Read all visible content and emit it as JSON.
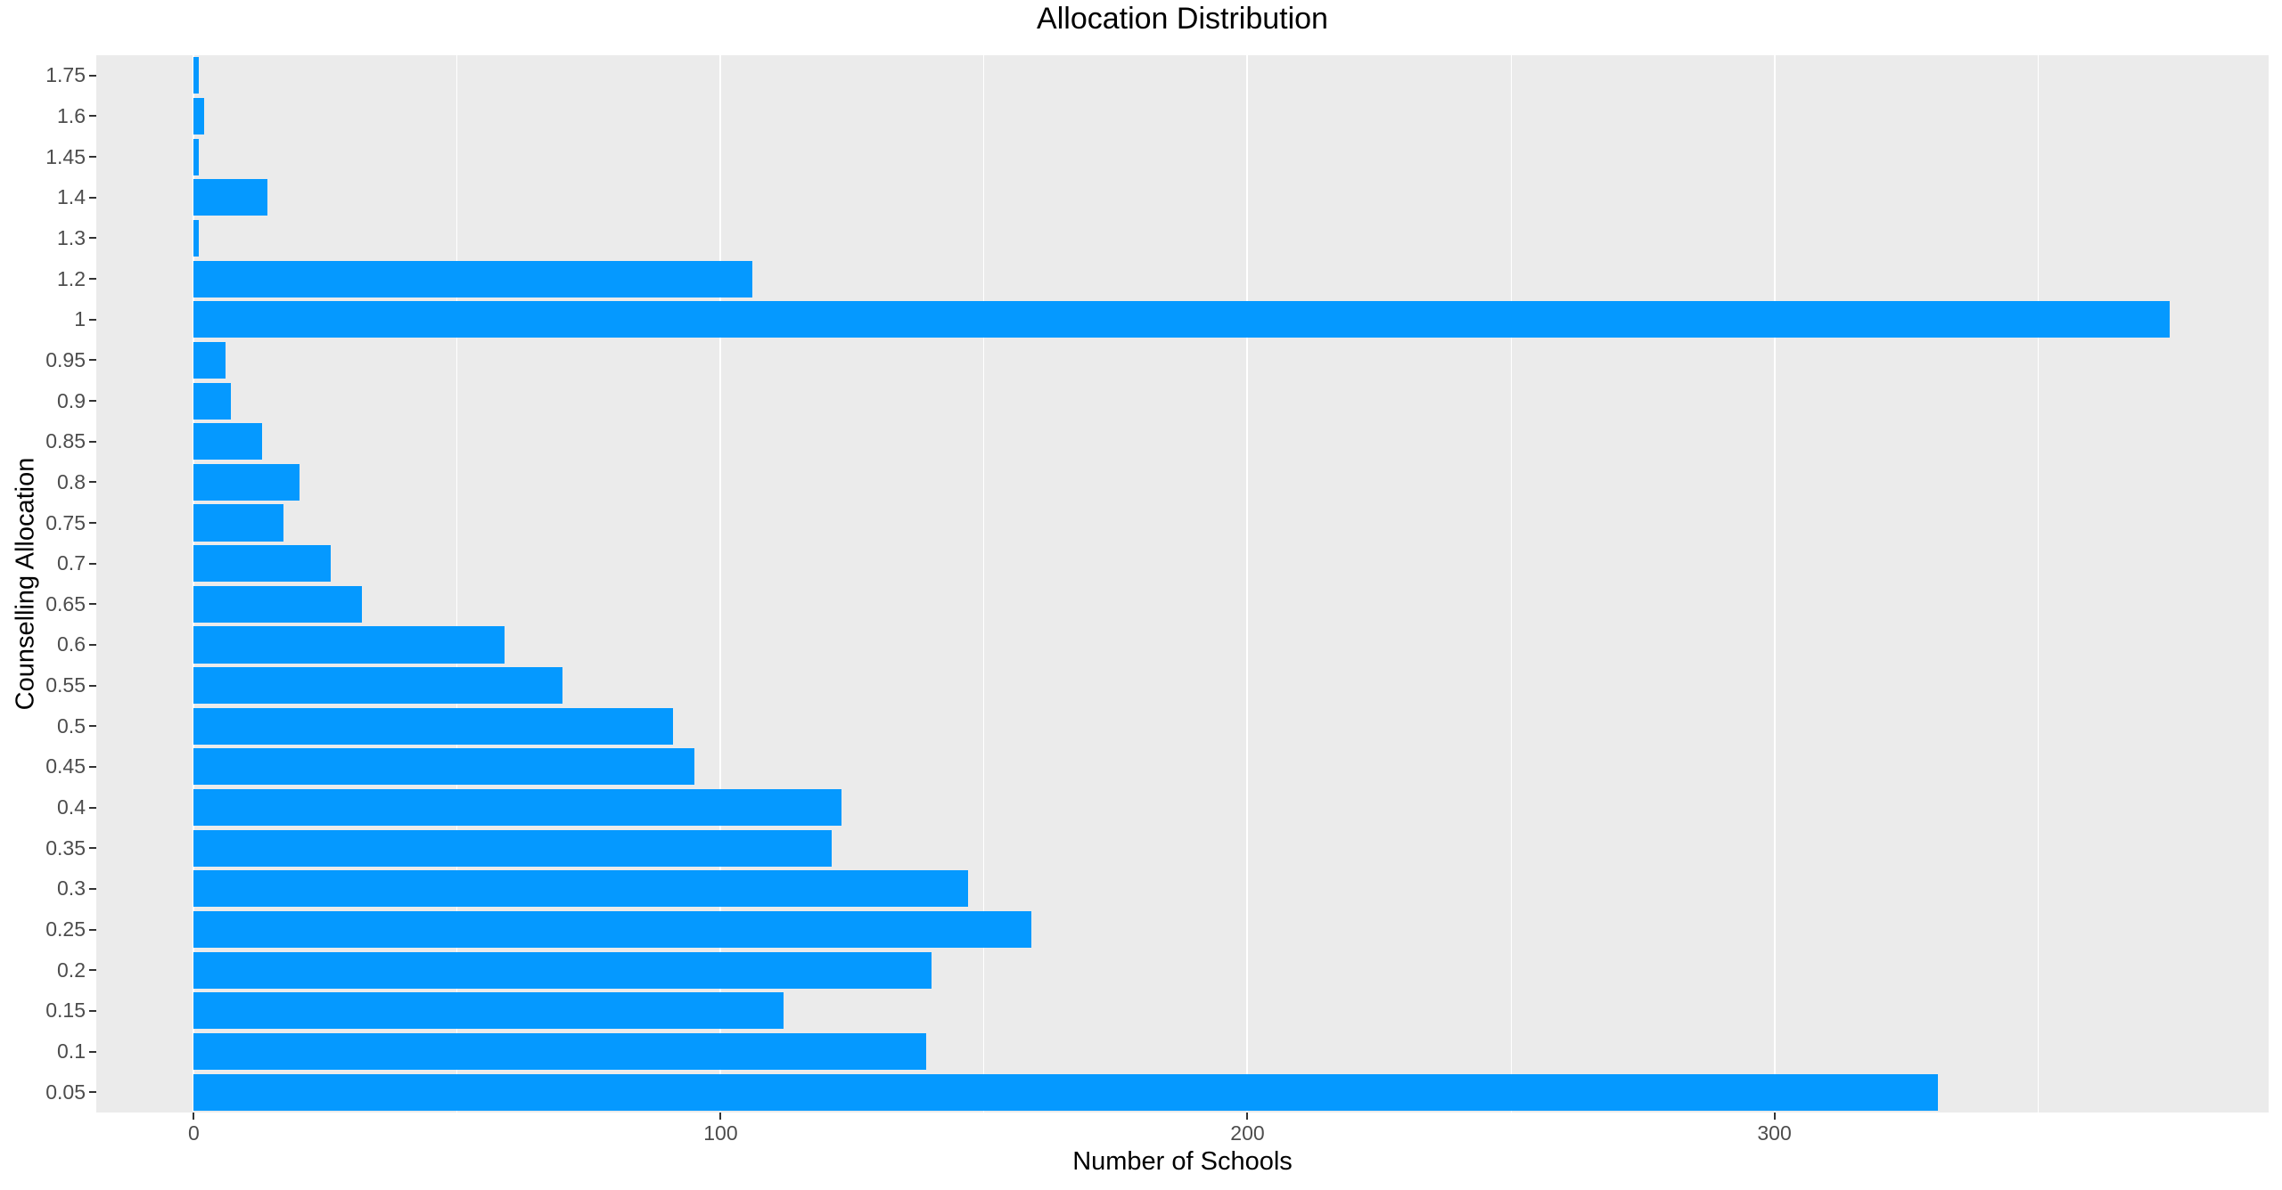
{
  "chart_data": {
    "type": "bar",
    "orientation": "horizontal",
    "title": "Allocation Distribution",
    "xlabel": "Number of Schools",
    "ylabel": "Counselling Allocation",
    "categories_top_to_bottom": [
      "1.75",
      "1.6",
      "1.45",
      "1.4",
      "1.3",
      "1.2",
      "1",
      "0.95",
      "0.9",
      "0.85",
      "0.8",
      "0.75",
      "0.7",
      "0.65",
      "0.6",
      "0.55",
      "0.5",
      "0.45",
      "0.4",
      "0.35",
      "0.3",
      "0.25",
      "0.2",
      "0.15",
      "0.1",
      "0.05"
    ],
    "values": [
      1,
      2,
      1,
      14,
      1,
      106,
      375,
      6,
      7,
      13,
      20,
      17,
      26,
      32,
      59,
      70,
      91,
      95,
      123,
      121,
      147,
      159,
      140,
      112,
      139,
      331
    ],
    "x_major_ticks": [
      0,
      100,
      200,
      300
    ],
    "x_minor_gridlines": [
      50,
      150,
      250,
      350
    ],
    "xlim": [
      -18.5,
      393.8
    ],
    "bar_relative_width": 0.9,
    "grid": true,
    "legend": false,
    "colors": {
      "bar": "#0599FF",
      "panel_background": "#EBEBEB",
      "gridline": "#FFFFFF",
      "tick_label_text": "#4D4D4D",
      "tick_mark": "#333333",
      "title_text": "#000000",
      "plot_background": "#FFFFFF"
    }
  }
}
